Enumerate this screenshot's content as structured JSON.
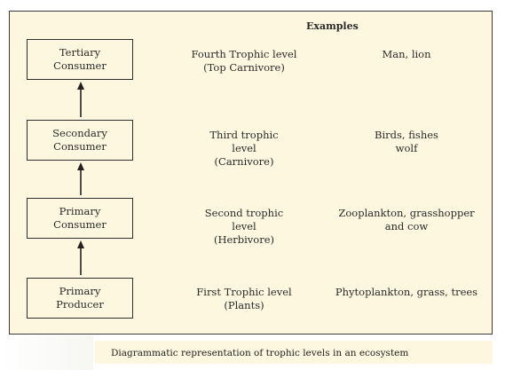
{
  "header": {
    "examples_label": "Examples"
  },
  "levels": [
    {
      "box_line1": "Tertiary",
      "box_line2": "Consumer",
      "level_lines": [
        "Fourth Trophic level",
        "(Top Carnivore)"
      ],
      "example_lines": [
        "Man, lion"
      ]
    },
    {
      "box_line1": "Secondary",
      "box_line2": "Consumer",
      "level_lines": [
        "Third trophic",
        "level",
        "(Carnivore)"
      ],
      "example_lines": [
        "Birds, fishes",
        "wolf"
      ]
    },
    {
      "box_line1": "Primary",
      "box_line2": "Consumer",
      "level_lines": [
        "Second trophic",
        "level",
        "(Herbivore)"
      ],
      "example_lines": [
        "Zooplankton, grasshopper",
        "and cow"
      ]
    },
    {
      "box_line1": "Primary",
      "box_line2": "Producer",
      "level_lines": [
        "First Trophic level",
        "(Plants)"
      ],
      "example_lines": [
        "Phytoplankton, grass, trees"
      ]
    }
  ],
  "caption": "Diagrammatic representation of trophic levels in an ecosystem"
}
